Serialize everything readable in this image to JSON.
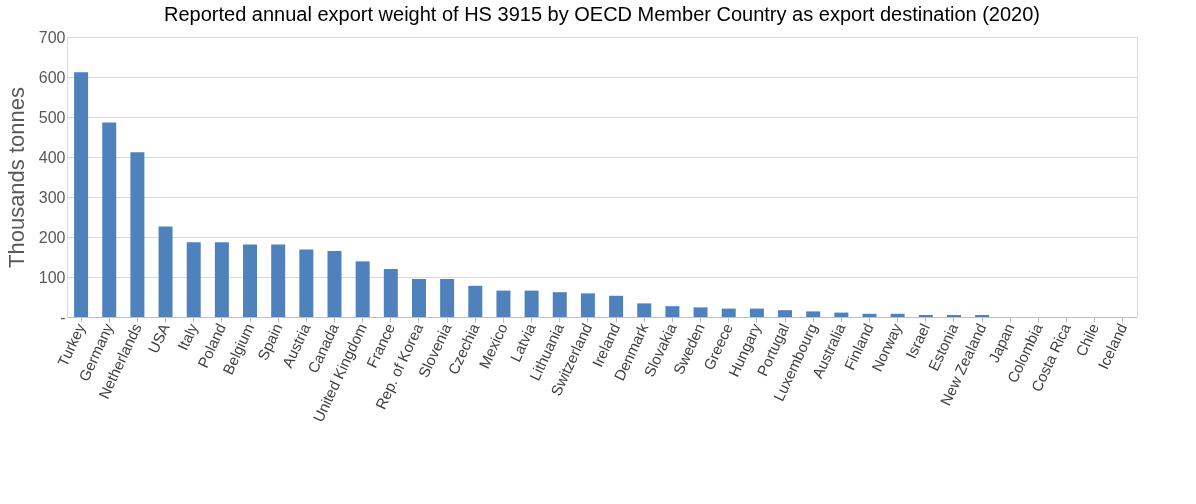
{
  "chart_data": {
    "type": "bar",
    "title": "Reported annual export weight of HS 3915 by OECD Member Country as export destination (2020)",
    "ylabel": "Thousands tonnes",
    "categories": [
      "Turkey",
      "Germany",
      "Netherlands",
      "USA",
      "Italy",
      "Poland",
      "Belgium",
      "Spain",
      "Austria",
      "Canada",
      "United Kingdom",
      "France",
      "Rep. of Korea",
      "Slovenia",
      "Czechia",
      "Mexico",
      "Latvia",
      "Lithuania",
      "Switzerland",
      "Ireland",
      "Denmark",
      "Slovakia",
      "Sweden",
      "Greece",
      "Hungary",
      "Portugal",
      "Luxembourg",
      "Australia",
      "Finland",
      "Norway",
      "Israel",
      "Estonia",
      "New Zealand",
      "Japan",
      "Colombia",
      "Costa Rica",
      "Chile",
      "Iceland"
    ],
    "values": [
      612,
      486,
      412,
      226,
      187,
      187,
      181,
      181,
      169,
      165,
      139,
      120,
      95,
      95,
      78,
      66,
      66,
      62,
      59,
      53,
      34,
      27,
      24,
      21,
      21,
      17,
      14,
      11,
      8,
      8,
      5,
      5,
      5,
      0,
      0,
      0,
      0,
      0
    ],
    "color": "#4f81bd",
    "ylim": [
      0,
      700
    ],
    "yticks": [
      {
        "value": 0,
        "label": "-"
      },
      100,
      200,
      300,
      400,
      500,
      600,
      700
    ],
    "grid": "y"
  }
}
